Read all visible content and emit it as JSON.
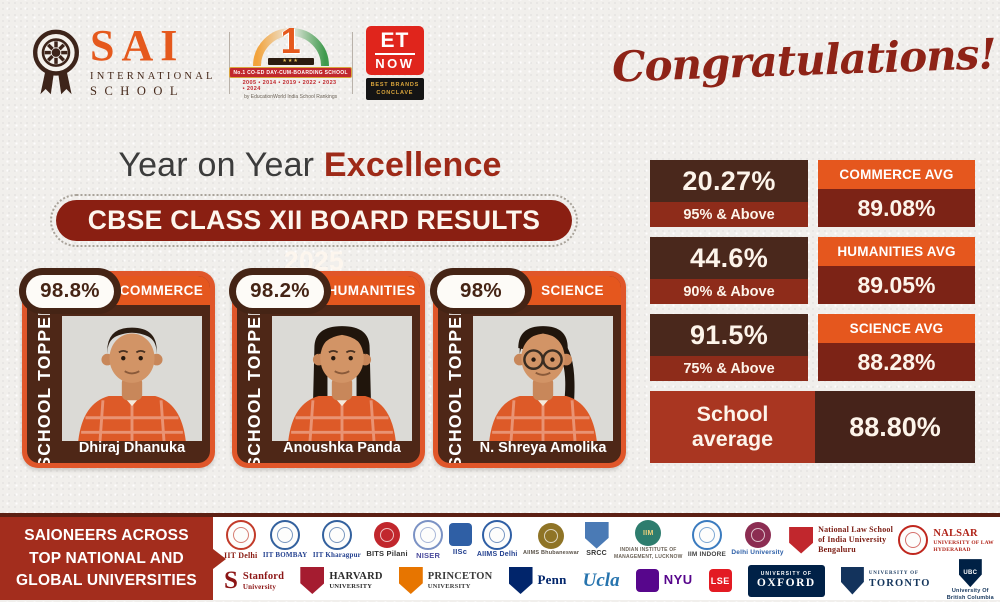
{
  "colors": {
    "accent_orange": "#e5571e",
    "dark_red": "#8a1f12",
    "card_brown": "#4e2717",
    "stat_brown": "#4a281c",
    "stat_red": "#8e2c1a",
    "school_avg_red": "#a93621",
    "footer_red": "#a32d1d"
  },
  "header": {
    "school": {
      "name": "SAI",
      "line1": "INTERNATIONAL",
      "line2": "SCHOOL"
    },
    "rank_badge": {
      "number": "1",
      "stars": "★★★",
      "banner": "No.1 CO-ED DAY-CUM-BOARDING SCHOOL",
      "years": "2005 • 2014 • 2019 • 2022 • 2023 • 2024",
      "subtext": "by EducationWorld India School Rankings"
    },
    "etnow": {
      "line1": "ET",
      "line2": "NOW",
      "line3": "BEST BRANDS",
      "line4": "CONCLAVE"
    },
    "congratulations": "Congratulations!"
  },
  "title": {
    "normal": "Year on Year",
    "accent": "Excellence"
  },
  "banner": "CBSE CLASS XII BOARD RESULTS 2025",
  "toppers": [
    {
      "percent": "98.8%",
      "stream": "COMMERCE",
      "name": "Dhiraj Dhanuka",
      "tag": "SCHOOL TOPPER"
    },
    {
      "percent": "98.2%",
      "stream": "HUMANITIES",
      "name": "Anoushka Panda",
      "tag": "SCHOOL TOPPER"
    },
    {
      "percent": "98%",
      "stream": "SCIENCE",
      "name": "N. Shreya Amolika",
      "tag": "SCHOOL TOPPER"
    }
  ],
  "stats": {
    "rows": [
      {
        "percent": "20.27%",
        "label": "95% & Above",
        "avg_label": "COMMERCE AVG",
        "avg_value": "89.08%"
      },
      {
        "percent": "44.6%",
        "label": "90% & Above",
        "avg_label": "HUMANITIES AVG",
        "avg_value": "89.05%"
      },
      {
        "percent": "91.5%",
        "label": "75% & Above",
        "avg_label": "SCIENCE AVG",
        "avg_value": "88.28%"
      }
    ],
    "school_average": {
      "label": "School average",
      "value": "88.80%"
    }
  },
  "footer": {
    "heading": [
      "SAIONEERS ACROSS",
      "TOP NATIONAL AND",
      "GLOBAL UNIVERSITIES"
    ],
    "universities_row1": [
      {
        "id": "iit-delhi",
        "mark": {
          "type": "ring",
          "color": "#c23b2a"
        },
        "label": {
          "lines": [
            "IIT Delhi"
          ],
          "serif": true,
          "color": "#8a1c12",
          "size": 8
        }
      },
      {
        "id": "iit-bombay",
        "mark": {
          "type": "ring",
          "color": "#33619e"
        },
        "label": {
          "lines": [
            "IIT BOMBAY"
          ],
          "serif": true,
          "color": "#23408f",
          "size": 7
        }
      },
      {
        "id": "iit-kharagpur",
        "mark": {
          "type": "ring",
          "color": "#33619e"
        },
        "label": {
          "lines": [
            "IIT Kharagpur"
          ],
          "serif": true,
          "color": "#23408f",
          "size": 7
        }
      },
      {
        "id": "bits-pilani",
        "mark": {
          "type": "circle",
          "color": "#c1272d"
        },
        "label": {
          "lines": [
            "BITS Pilani"
          ],
          "color": "#333333",
          "size": 7.5
        }
      },
      {
        "id": "niser",
        "mark": {
          "type": "ring",
          "color": "#7b92c4"
        },
        "label": {
          "lines": [
            "NISER"
          ],
          "color": "#4a4a9c",
          "size": 7.5
        }
      },
      {
        "id": "iisc",
        "mark": {
          "type": "square",
          "color": "#2f5fa5"
        },
        "label": {
          "lines": [
            "IISc"
          ],
          "color": "#23408f",
          "size": 7.5
        }
      },
      {
        "id": "aiims-delhi",
        "mark": {
          "type": "ring",
          "color": "#2f5fa5"
        },
        "label": {
          "lines": [
            "AIIMS Delhi"
          ],
          "color": "#23408f",
          "size": 7
        }
      },
      {
        "id": "aiims-bhubaneswar",
        "mark": {
          "type": "circle",
          "color": "#8f7426"
        },
        "label": {
          "lines": [
            "AIIMS Bhubaneswar"
          ],
          "color": "#5a5248",
          "size": 5.5
        }
      },
      {
        "id": "srcc",
        "mark": {
          "type": "shield",
          "color": "#4a7ab5"
        },
        "label": {
          "lines": [
            "SRCC"
          ],
          "color": "#333333",
          "size": 7
        }
      },
      {
        "id": "iim-lucknow",
        "mark": {
          "type": "circle",
          "color": "#2e7d6e",
          "text": "IIM"
        },
        "label": {
          "lines": [
            "INDIAN INSTITUTE OF",
            "MANAGEMENT, LUCKNOW"
          ],
          "color": "#6b6257",
          "size": 5
        }
      },
      {
        "id": "iim-indore",
        "mark": {
          "type": "ring",
          "color": "#3a7bbf"
        },
        "label": {
          "lines": [
            "IIM INDORE"
          ],
          "color": "#444444",
          "size": 6.5
        }
      },
      {
        "id": "delhi-university",
        "mark": {
          "type": "circle",
          "color": "#8c2d52"
        },
        "label": {
          "lines": [
            "Delhi University"
          ],
          "color": "#2b5ea7",
          "size": 6.5
        }
      },
      {
        "id": "nlsiu",
        "layout": "side",
        "mark": {
          "type": "shield",
          "color": "#c1272d"
        },
        "label": {
          "lines": [
            "National Law School",
            "of India University",
            "Bengaluru"
          ],
          "serif": true,
          "color": "#7a1a10",
          "size": 8
        }
      },
      {
        "id": "nalsar",
        "layout": "side",
        "mark": {
          "type": "ring",
          "color": "#c0271e"
        },
        "label": {
          "lines": [
            "NALSAR",
            "UNIVERSITY OF LAW",
            "HYDERABAD"
          ],
          "serif": true,
          "bigfirst": true,
          "color": "#b02318",
          "size": 5.5
        }
      }
    ],
    "universities_row2": [
      {
        "id": "stanford",
        "layout": "side",
        "mark": {
          "type": "letter",
          "color": "#8c1515",
          "text": "S"
        },
        "label": {
          "lines": [
            "Stanford",
            "University"
          ],
          "serif": true,
          "bigfirst": true,
          "color": "#8c1515",
          "size": 7
        }
      },
      {
        "id": "harvard",
        "layout": "side",
        "mark": {
          "type": "shield",
          "color": "#a51c30"
        },
        "label": {
          "lines": [
            "HARVARD",
            "UNIVERSITY"
          ],
          "serif": true,
          "bigfirst": true,
          "color": "#2b2b2b",
          "size": 6.5
        }
      },
      {
        "id": "princeton",
        "layout": "side",
        "mark": {
          "type": "shield",
          "color": "#e77500"
        },
        "label": {
          "lines": [
            "PRINCETON",
            "UNIVERSITY"
          ],
          "serif": true,
          "bigfirst": true,
          "color": "#3a3a3a",
          "size": 6.5
        }
      },
      {
        "id": "penn",
        "layout": "side",
        "mark": {
          "type": "shield",
          "color": "#01256b"
        },
        "label": {
          "lines": [
            "Penn"
          ],
          "serif": true,
          "color": "#01256b",
          "size": 13
        }
      },
      {
        "id": "ucla",
        "mark": {
          "type": "script",
          "color": "#2774ae",
          "text": "Ucla"
        }
      },
      {
        "id": "nyu",
        "layout": "side",
        "mark": {
          "type": "square",
          "color": "#57068c"
        },
        "label": {
          "lines": [
            "NYU"
          ],
          "color": "#57068c",
          "size": 13
        }
      },
      {
        "id": "lse",
        "mark": {
          "type": "square",
          "color": "#e31b23",
          "text": "LSE"
        }
      },
      {
        "id": "oxford",
        "mark": {
          "type": "banner",
          "color": "#002147",
          "lines": [
            "UNIVERSITY OF",
            "OXFORD"
          ]
        }
      },
      {
        "id": "toronto",
        "layout": "side",
        "mark": {
          "type": "crest",
          "color": "#13335c"
        },
        "label": {
          "lines": [
            "UNIVERSITY OF",
            "TORONTO"
          ],
          "serif": true,
          "color": "#15365c",
          "size": 5
        }
      },
      {
        "id": "ubc",
        "mark": {
          "type": "crest",
          "color": "#002145",
          "text": "UBC"
        },
        "label": {
          "lines": [
            "University Of",
            "British Columbia"
          ],
          "color": "#15365c",
          "size": 5.5
        }
      }
    ]
  }
}
